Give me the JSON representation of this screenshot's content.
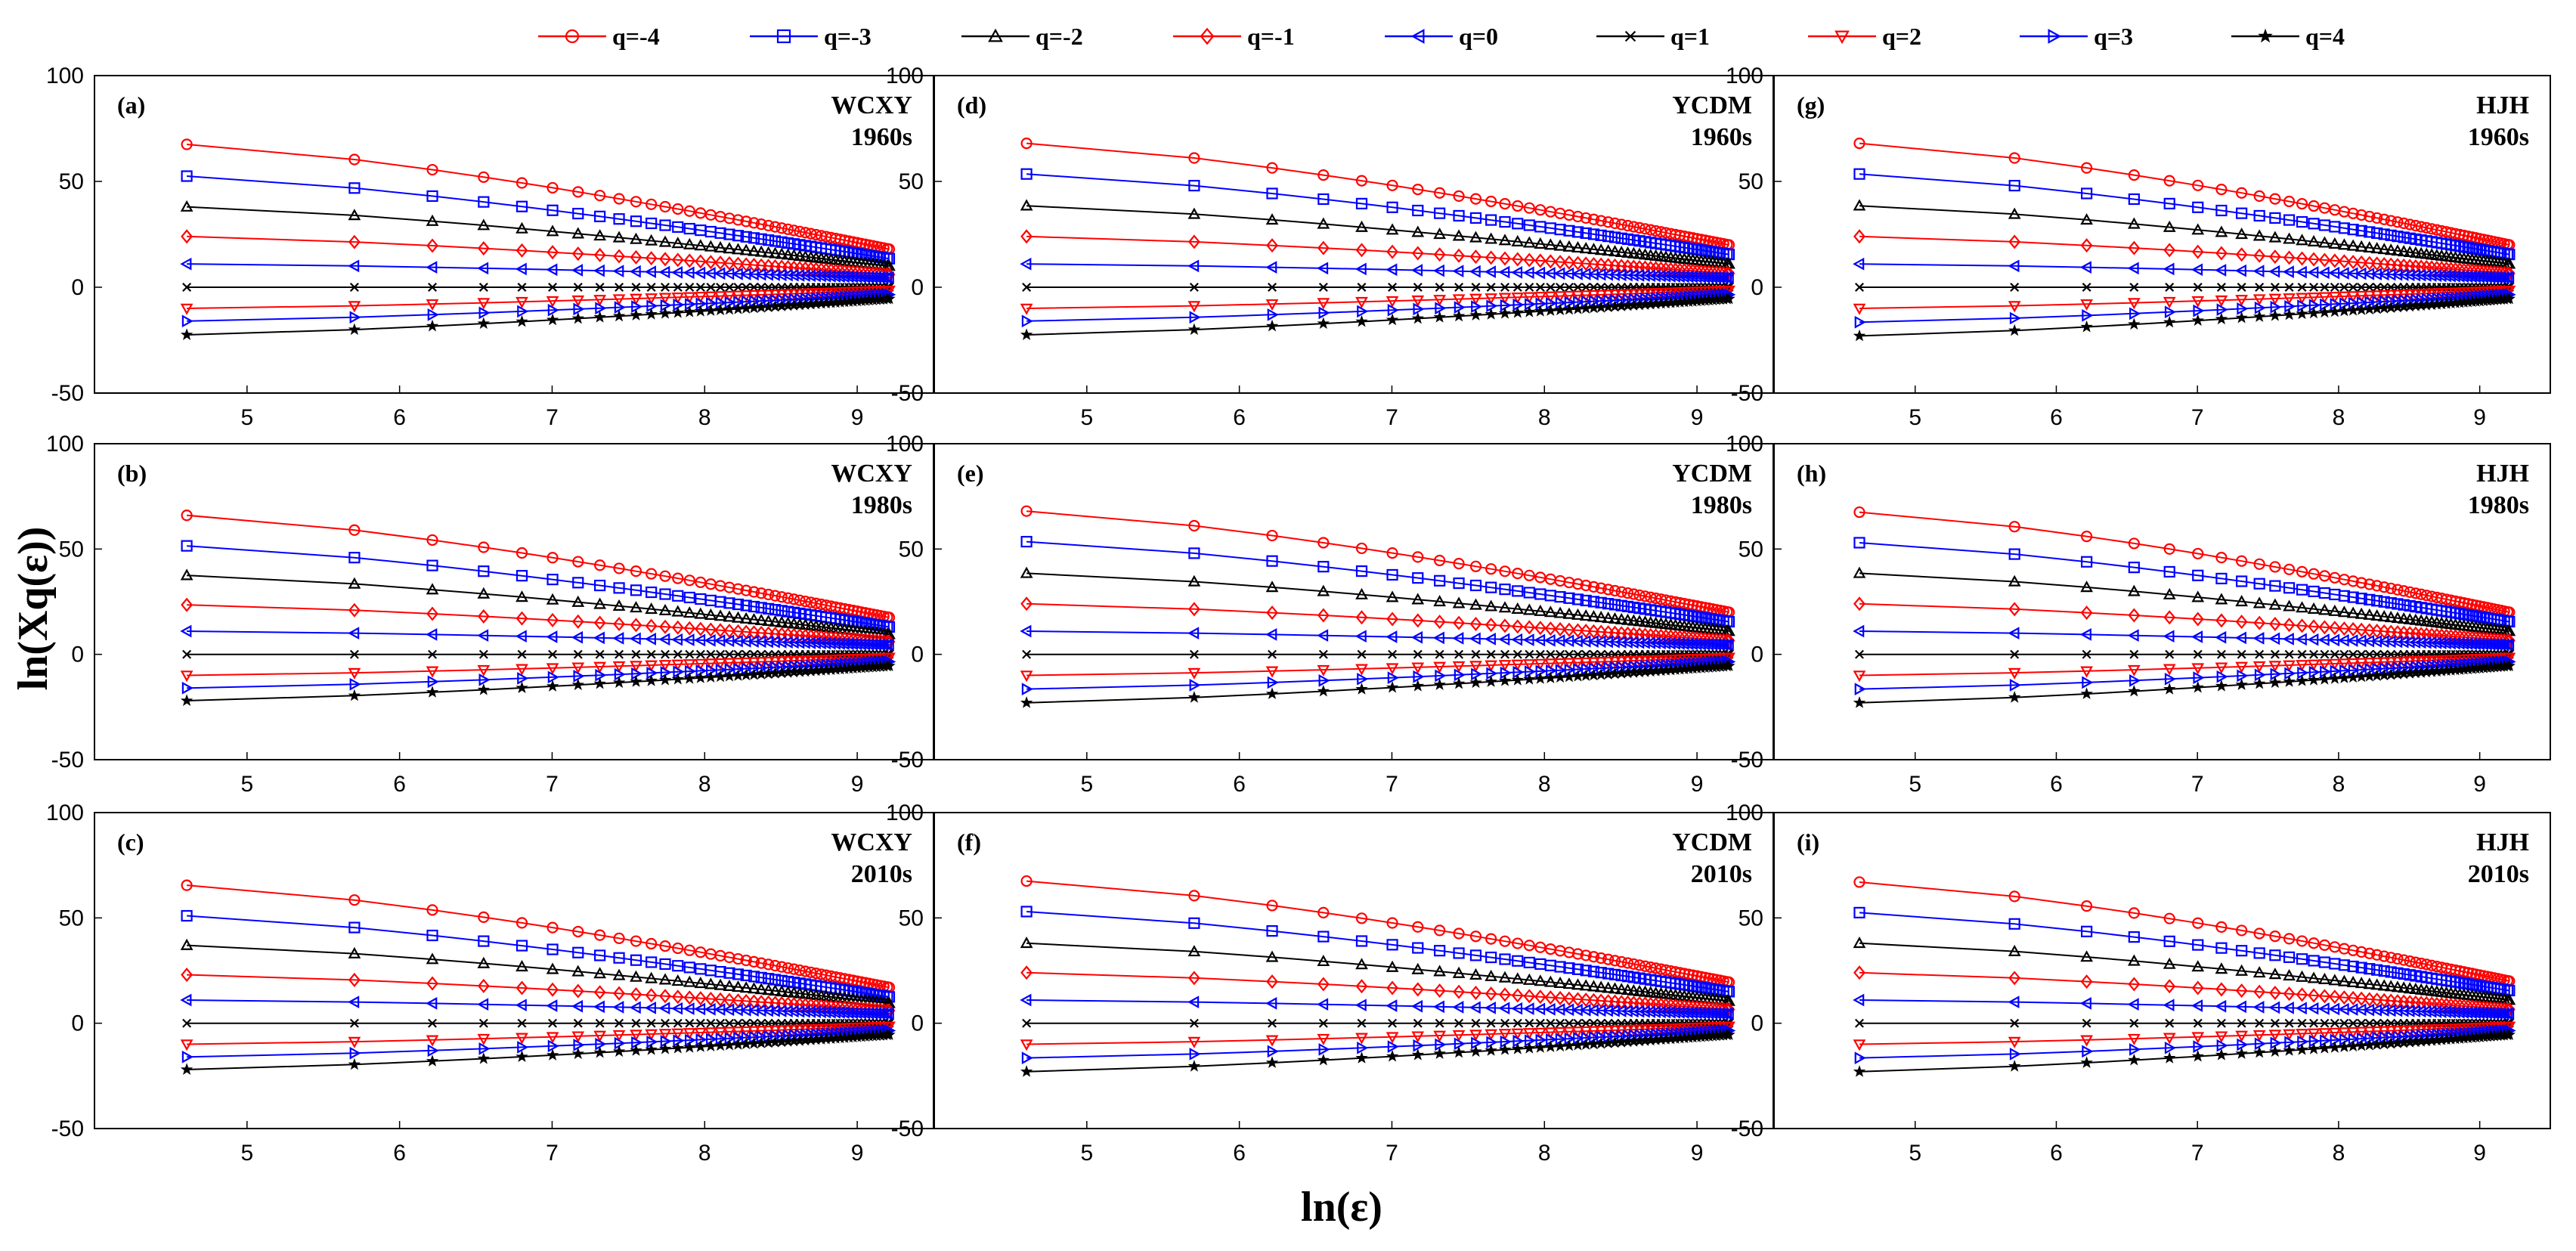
{
  "chart_data": {
    "type": "line",
    "xlabel": "ln(ε)",
    "ylabel": "ln(Xq(ε))",
    "xlim": [
      4.0,
      9.5
    ],
    "ylim": [
      -50,
      100
    ],
    "xticks": [
      5,
      6,
      7,
      8,
      9
    ],
    "yticks": [
      -50,
      0,
      50,
      100
    ],
    "series_styles": [
      {
        "q": -4,
        "name": "q=-4",
        "color": "#ff0000",
        "marker": "circle"
      },
      {
        "q": -3,
        "name": "q=-3",
        "color": "#0000ff",
        "marker": "square"
      },
      {
        "q": -2,
        "name": "q=-2",
        "color": "#000000",
        "marker": "triangle-up"
      },
      {
        "q": -1,
        "name": "q=-1",
        "color": "#ff0000",
        "marker": "diamond"
      },
      {
        "q": 0,
        "name": "q=0",
        "color": "#0000ff",
        "marker": "triangle-left"
      },
      {
        "q": 1,
        "name": "q=1",
        "color": "#000000",
        "marker": "x"
      },
      {
        "q": 2,
        "name": "q=2",
        "color": "#ff0000",
        "marker": "triangle-down"
      },
      {
        "q": 3,
        "name": "q=3",
        "color": "#0000ff",
        "marker": "triangle-right"
      },
      {
        "q": 4,
        "name": "q=4",
        "color": "#000000",
        "marker": "star"
      }
    ],
    "x": [
      4.605,
      5.704,
      6.215,
      6.551,
      6.802,
      7.003,
      7.17,
      7.313,
      7.439,
      7.55,
      7.65,
      7.741,
      7.824,
      7.901,
      7.973,
      8.04,
      8.103,
      8.162,
      8.219,
      8.272,
      8.323,
      8.371,
      8.418,
      8.462,
      8.505,
      8.546,
      8.585,
      8.623,
      8.66,
      8.696,
      8.73,
      8.764,
      8.796,
      8.828,
      8.859,
      8.888,
      8.917,
      8.946,
      8.973,
      9.0,
      9.027,
      9.053,
      9.078,
      9.103,
      9.127,
      9.151,
      9.174,
      9.197,
      9.21
    ],
    "panels": [
      {
        "label": "(a)",
        "title_line1": "WCXY",
        "title_line2": "1960s",
        "start": [
          67.5,
          52.5,
          38.0,
          24.0,
          11.0,
          0,
          -10.0,
          -16.0,
          -22.5
        ],
        "end": [
          18.0,
          13.5,
          10.0,
          6.0,
          4.5,
          0,
          -1.5,
          -3.5,
          -5.5
        ]
      },
      {
        "label": "(b)",
        "title_line1": "WCXY",
        "title_line2": "1980s",
        "start": [
          66.0,
          51.5,
          37.5,
          23.5,
          11.0,
          0,
          -10.0,
          -16.0,
          -22.0
        ],
        "end": [
          17.5,
          13.0,
          9.5,
          6.0,
          4.5,
          0,
          -1.5,
          -3.5,
          -5.5
        ]
      },
      {
        "label": "(c)",
        "title_line1": "WCXY",
        "title_line2": "2010s",
        "start": [
          65.5,
          51.0,
          37.0,
          23.0,
          11.0,
          0,
          -10.0,
          -16.0,
          -22.0
        ],
        "end": [
          17.0,
          12.5,
          9.5,
          6.0,
          4.5,
          0,
          -1.5,
          -3.5,
          -5.5
        ]
      },
      {
        "label": "(d)",
        "title_line1": "YCDM",
        "title_line2": "1960s",
        "start": [
          68.0,
          53.5,
          38.5,
          24.0,
          11.0,
          0,
          -10.0,
          -16.0,
          -22.5
        ],
        "end": [
          20.0,
          15.5,
          11.0,
          6.5,
          4.5,
          0,
          -1.5,
          -3.5,
          -5.5
        ]
      },
      {
        "label": "(e)",
        "title_line1": "YCDM",
        "title_line2": "1980s",
        "start": [
          68.0,
          53.5,
          38.5,
          24.0,
          11.0,
          0,
          -10.0,
          -16.5,
          -23.0
        ],
        "end": [
          20.0,
          15.5,
          11.0,
          6.5,
          4.5,
          0,
          -1.5,
          -3.5,
          -5.5
        ]
      },
      {
        "label": "(f)",
        "title_line1": "YCDM",
        "title_line2": "2010s",
        "start": [
          67.5,
          53.0,
          38.0,
          24.0,
          11.0,
          0,
          -10.0,
          -16.5,
          -23.0
        ],
        "end": [
          19.5,
          15.0,
          10.5,
          6.5,
          4.5,
          0,
          -1.5,
          -3.5,
          -5.5
        ]
      },
      {
        "label": "(g)",
        "title_line1": "HJH",
        "title_line2": "1960s",
        "start": [
          68.0,
          53.5,
          38.5,
          24.0,
          11.0,
          0,
          -10.0,
          -16.5,
          -23.0
        ],
        "end": [
          20.0,
          15.5,
          11.0,
          6.5,
          4.5,
          0,
          -1.5,
          -3.5,
          -5.5
        ]
      },
      {
        "label": "(h)",
        "title_line1": "HJH",
        "title_line2": "1980s",
        "start": [
          67.5,
          53.0,
          38.5,
          24.0,
          11.0,
          0,
          -10.0,
          -16.5,
          -23.0
        ],
        "end": [
          20.0,
          15.5,
          11.0,
          6.5,
          4.5,
          0,
          -1.5,
          -3.5,
          -5.5
        ]
      },
      {
        "label": "(i)",
        "title_line1": "HJH",
        "title_line2": "2010s",
        "start": [
          67.0,
          52.5,
          38.0,
          24.0,
          11.0,
          0,
          -10.0,
          -16.5,
          -23.0
        ],
        "end": [
          20.0,
          15.5,
          11.0,
          6.5,
          4.5,
          0,
          -1.5,
          -3.5,
          -5.5
        ]
      }
    ]
  }
}
